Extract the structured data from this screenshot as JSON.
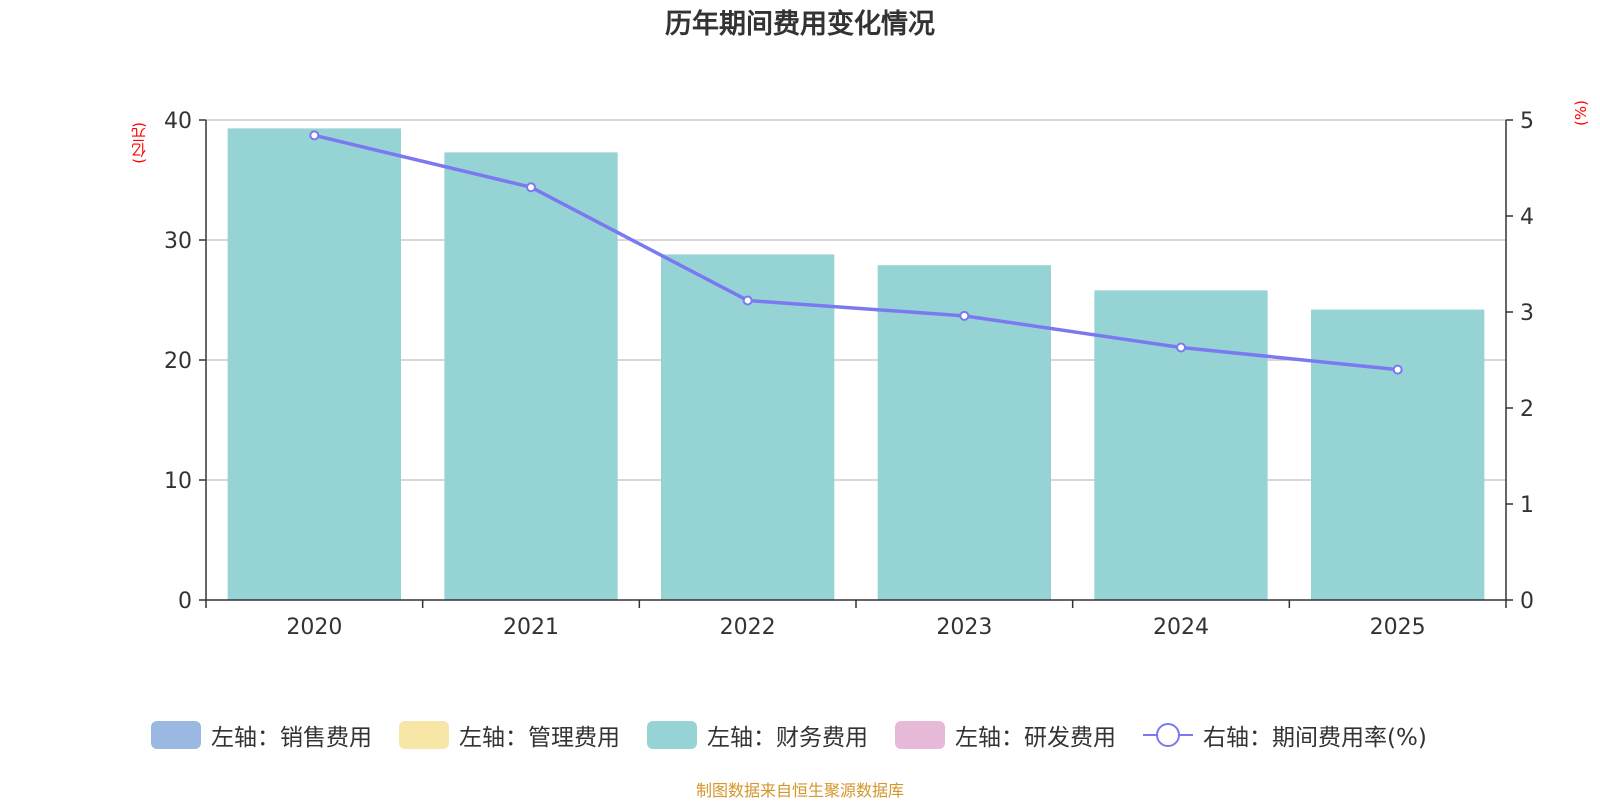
{
  "chart_data": {
    "type": "bar",
    "title": "历年期间费用变化情况",
    "categories": [
      "2020",
      "2021",
      "2022",
      "2023",
      "2024",
      "2025"
    ],
    "series": [
      {
        "name": "左轴：财务费用",
        "axis": "left",
        "type": "bar",
        "color": "#96d3d4",
        "values": [
          39.3,
          37.3,
          28.8,
          27.9,
          25.8,
          24.2
        ]
      },
      {
        "name": "右轴：期间费用率(%)",
        "axis": "right",
        "type": "line",
        "color": "#7b79f0",
        "values": [
          4.84,
          4.3,
          3.12,
          2.96,
          2.63,
          2.4
        ]
      }
    ],
    "y_left": {
      "unit": "(亿元)",
      "ylim": [
        0,
        40
      ],
      "ticks": [
        "0",
        "10",
        "20",
        "30",
        "40"
      ]
    },
    "y_right": {
      "unit": "(%)",
      "ylim": [
        0,
        5
      ],
      "ticks": [
        "0",
        "1",
        "2",
        "3",
        "4",
        "5"
      ]
    },
    "grid": true,
    "legend_position": "bottom",
    "legend": [
      {
        "label": "左轴：销售费用",
        "color": "#9ab8e2",
        "kind": "box"
      },
      {
        "label": "左轴：管理费用",
        "color": "#f8e6a6",
        "kind": "box"
      },
      {
        "label": "左轴：财务费用",
        "color": "#96d3d4",
        "kind": "box"
      },
      {
        "label": "左轴：研发费用",
        "color": "#e7b9d9",
        "kind": "box"
      },
      {
        "label": "右轴：期间费用率(%)",
        "color": "#7b79f0",
        "kind": "line"
      }
    ],
    "source": "制图数据来自恒生聚源数据库"
  }
}
